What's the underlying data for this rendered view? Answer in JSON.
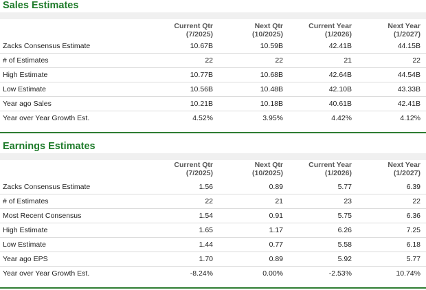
{
  "sales": {
    "title": "Sales Estimates",
    "columns": [
      {
        "line1": "Current Qtr",
        "line2": "(7/2025)"
      },
      {
        "line1": "Next Qtr",
        "line2": "(10/2025)"
      },
      {
        "line1": "Current Year",
        "line2": "(1/2026)"
      },
      {
        "line1": "Next Year",
        "line2": "(1/2027)"
      }
    ],
    "rows": [
      {
        "label": "Zacks Consensus Estimate",
        "values": [
          "10.67B",
          "10.59B",
          "42.41B",
          "44.15B"
        ]
      },
      {
        "label": "# of Estimates",
        "values": [
          "22",
          "22",
          "21",
          "22"
        ]
      },
      {
        "label": "High Estimate",
        "values": [
          "10.77B",
          "10.68B",
          "42.64B",
          "44.54B"
        ]
      },
      {
        "label": "Low Estimate",
        "values": [
          "10.56B",
          "10.48B",
          "42.10B",
          "43.33B"
        ]
      },
      {
        "label": "Year ago Sales",
        "values": [
          "10.21B",
          "10.18B",
          "40.61B",
          "42.41B"
        ]
      },
      {
        "label": "Year over Year Growth Est.",
        "values": [
          "4.52%",
          "3.95%",
          "4.42%",
          "4.12%"
        ]
      }
    ]
  },
  "earnings": {
    "title": "Earnings Estimates",
    "columns": [
      {
        "line1": "Current Qtr",
        "line2": "(7/2025)"
      },
      {
        "line1": "Next Qtr",
        "line2": "(10/2025)"
      },
      {
        "line1": "Current Year",
        "line2": "(1/2026)"
      },
      {
        "line1": "Next Year",
        "line2": "(1/2027)"
      }
    ],
    "rows": [
      {
        "label": "Zacks Consensus Estimate",
        "values": [
          "1.56",
          "0.89",
          "5.77",
          "6.39"
        ]
      },
      {
        "label": "# of Estimates",
        "values": [
          "22",
          "21",
          "23",
          "22"
        ]
      },
      {
        "label": "Most Recent Consensus",
        "values": [
          "1.54",
          "0.91",
          "5.75",
          "6.36"
        ]
      },
      {
        "label": "High Estimate",
        "values": [
          "1.65",
          "1.17",
          "6.26",
          "7.25"
        ]
      },
      {
        "label": "Low Estimate",
        "values": [
          "1.44",
          "0.77",
          "5.58",
          "6.18"
        ]
      },
      {
        "label": "Year ago EPS",
        "values": [
          "1.70",
          "0.89",
          "5.92",
          "5.77"
        ]
      },
      {
        "label": "Year over Year Growth Est.",
        "values": [
          "-8.24%",
          "0.00%",
          "-2.53%",
          "10.74%"
        ]
      }
    ]
  },
  "colors": {
    "accent": "#1e7b2a",
    "rule": "#2e7d32",
    "band": "#f0f0f0",
    "row_divider": "#dcdcdc"
  }
}
